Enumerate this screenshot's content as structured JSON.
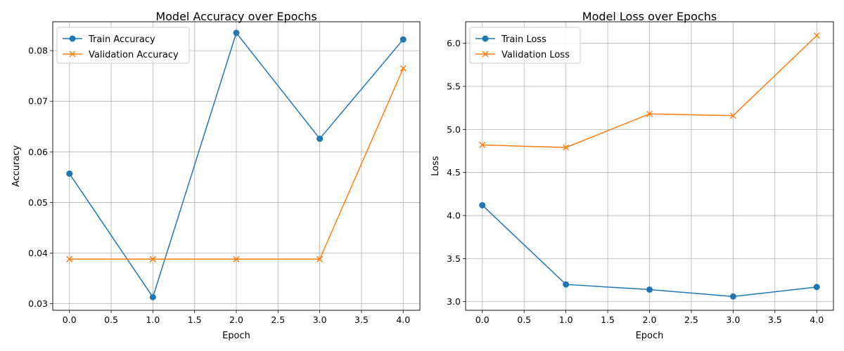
{
  "chart_data": [
    {
      "type": "line",
      "title": "Model Accuracy over Epochs",
      "xlabel": "Epoch",
      "ylabel": "Accuracy",
      "grid": true,
      "legend_position": "top-left",
      "xlim": [
        -0.2,
        4.2
      ],
      "ylim": [
        0.0287,
        0.0857
      ],
      "x_ticks": [
        0.0,
        0.5,
        1.0,
        1.5,
        2.0,
        2.5,
        3.0,
        3.5,
        4.0
      ],
      "x_tick_labels": [
        "0.0",
        "0.5",
        "1.0",
        "1.5",
        "2.0",
        "2.5",
        "3.0",
        "3.5",
        "4.0"
      ],
      "y_ticks": [
        0.03,
        0.04,
        0.05,
        0.06,
        0.07,
        0.08
      ],
      "y_tick_labels": [
        "0.03",
        "0.04",
        "0.05",
        "0.06",
        "0.07",
        "0.08"
      ],
      "x": [
        0,
        1,
        2,
        3,
        4
      ],
      "series": [
        {
          "name": "Train Accuracy",
          "color": "#1f77b4",
          "marker": "circle",
          "values": [
            0.0557,
            0.0313,
            0.0835,
            0.0626,
            0.0822
          ]
        },
        {
          "name": "Validation Accuracy",
          "color": "#ff7f0e",
          "marker": "x",
          "values": [
            0.0388,
            0.0388,
            0.0388,
            0.0388,
            0.0765
          ]
        }
      ]
    },
    {
      "type": "line",
      "title": "Model Loss over Epochs",
      "xlabel": "Epoch",
      "ylabel": "Loss",
      "grid": true,
      "legend_position": "top-left",
      "xlim": [
        -0.2,
        4.2
      ],
      "ylim": [
        2.9,
        6.25
      ],
      "x_ticks": [
        0.0,
        0.5,
        1.0,
        1.5,
        2.0,
        2.5,
        3.0,
        3.5,
        4.0
      ],
      "x_tick_labels": [
        "0.0",
        "0.5",
        "1.0",
        "1.5",
        "2.0",
        "2.5",
        "3.0",
        "3.5",
        "4.0"
      ],
      "y_ticks": [
        3.0,
        3.5,
        4.0,
        4.5,
        5.0,
        5.5,
        6.0
      ],
      "y_tick_labels": [
        "3.0",
        "3.5",
        "4.0",
        "4.5",
        "5.0",
        "5.5",
        "6.0"
      ],
      "x": [
        0,
        1,
        2,
        3,
        4
      ],
      "series": [
        {
          "name": "Train Loss",
          "color": "#1f77b4",
          "marker": "circle",
          "values": [
            4.12,
            3.2,
            3.14,
            3.06,
            3.17
          ]
        },
        {
          "name": "Validation Loss",
          "color": "#ff7f0e",
          "marker": "x",
          "values": [
            4.82,
            4.79,
            5.18,
            5.16,
            6.09
          ]
        }
      ]
    }
  ]
}
